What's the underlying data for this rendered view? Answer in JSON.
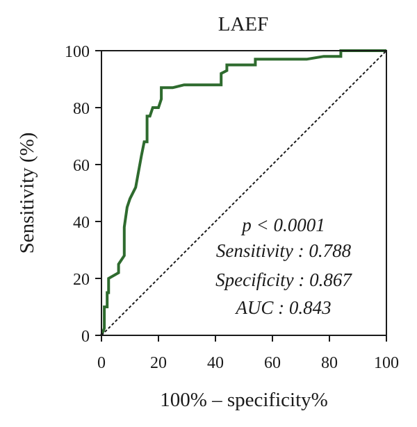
{
  "chart_data": {
    "type": "line",
    "title": "LAEF",
    "xlabel": "100% – specificity%",
    "ylabel": "Sensitivity (%)",
    "xlim": [
      0,
      100
    ],
    "ylim": [
      0,
      100
    ],
    "x_ticks": [
      "0",
      "20",
      "40",
      "60",
      "80",
      "100"
    ],
    "y_ticks": [
      "0",
      "20",
      "40",
      "60",
      "80",
      "100"
    ],
    "grid": false,
    "series": [
      {
        "color": "#2e6b2e",
        "x": [
          0,
          1,
          1,
          2,
          2,
          2.5,
          2.5,
          6,
          6,
          8,
          8,
          9,
          10,
          12,
          14,
          15,
          16,
          16,
          17,
          18,
          18,
          20,
          21,
          21,
          25,
          29,
          35,
          42,
          42,
          44,
          44,
          54,
          54,
          72,
          78,
          84,
          84,
          100
        ],
        "y": [
          0,
          2.5,
          10,
          10,
          15,
          15,
          20,
          22,
          25,
          28,
          38,
          45,
          48,
          52,
          63,
          68,
          68,
          77,
          77,
          80,
          80,
          80,
          83,
          87,
          87,
          88,
          88,
          88,
          92,
          93,
          95,
          95,
          97,
          97,
          98,
          98,
          100,
          100
        ]
      },
      {
        "style": "dashed",
        "color": "#1a1a1a",
        "x": [
          0,
          100
        ],
        "y": [
          0,
          100
        ]
      }
    ],
    "annotations": [
      "p < 0.0001",
      "Sensitivity : 0.788",
      "Specificity : 0.867",
      "AUC : 0.843"
    ]
  }
}
